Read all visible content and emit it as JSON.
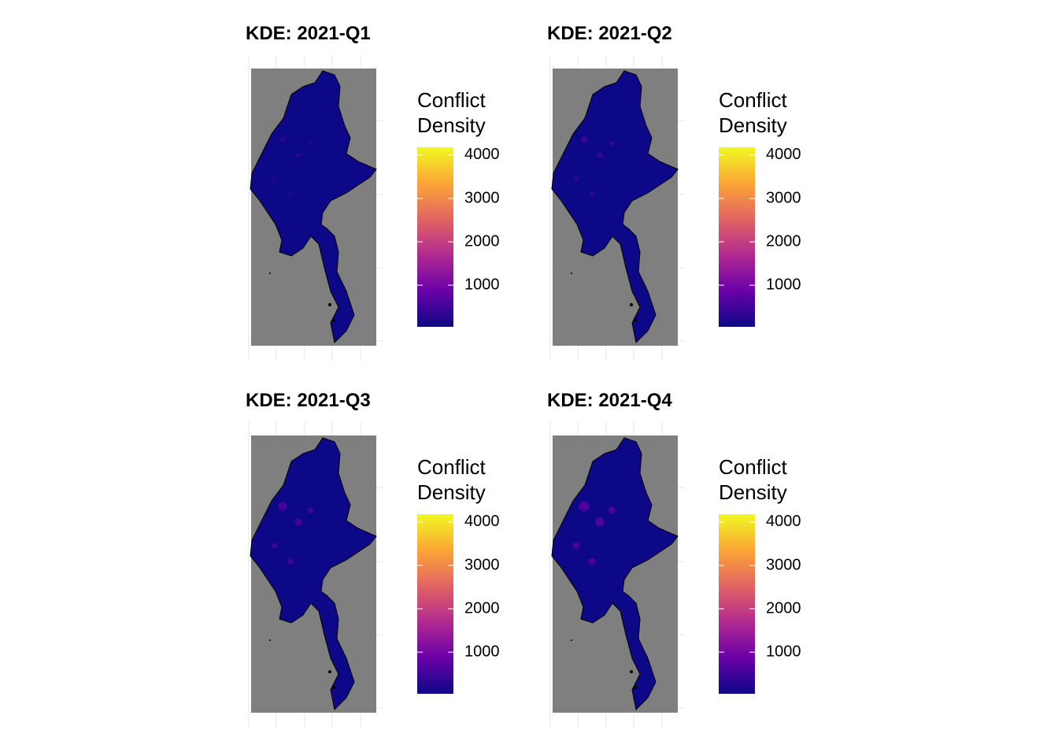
{
  "chart_data": [
    {
      "type": "raster_map",
      "title": "KDE: 2021-Q1",
      "legend_title": "Conflict\nDensity",
      "clim": [
        40,
        4180
      ],
      "cticks": [
        1000,
        2000,
        3000,
        4000
      ],
      "colormap": "plasma"
    },
    {
      "type": "raster_map",
      "title": "KDE: 2021-Q2",
      "legend_title": "Conflict\nDensity",
      "clim": [
        40,
        4180
      ],
      "cticks": [
        1000,
        2000,
        3000,
        4000
      ],
      "colormap": "plasma"
    },
    {
      "type": "raster_map",
      "title": "KDE: 2021-Q3",
      "legend_title": "Conflict\nDensity",
      "clim": [
        40,
        4180
      ],
      "cticks": [
        1000,
        2000,
        3000,
        4000
      ],
      "colormap": "plasma"
    },
    {
      "type": "raster_map",
      "title": "KDE: 2021-Q4",
      "legend_title": "Conflict\nDensity",
      "clim": [
        40,
        4180
      ],
      "cticks": [
        1000,
        2000,
        3000,
        4000
      ],
      "colormap": "plasma"
    }
  ]
}
